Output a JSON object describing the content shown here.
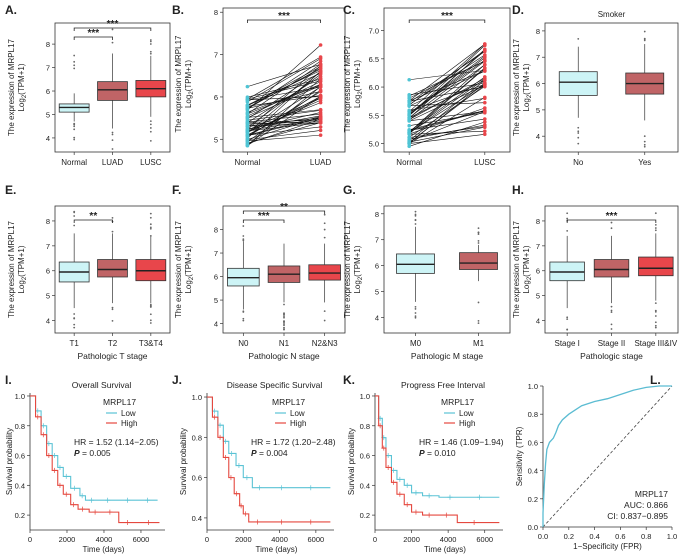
{
  "colors": {
    "normal_fill": "#cdf4f6",
    "luad_fill": "#c06466",
    "lusc_fill": "#e8464b",
    "paired_normal": "#4fc4d4",
    "paired_tumor": "#e8464b",
    "km_low": "#5bc3d5",
    "km_high": "#e5483f",
    "roc_line": "#5bbcd2"
  },
  "chart_data": [
    {
      "panel": "A.",
      "type": "box",
      "ylabel1": "The expression of MRPL17",
      "ylabel2_base": "Log",
      "ylabel2_sub": "2",
      "ylabel2_rest": "(TPM+1)",
      "ylim": [
        3.4,
        8.9
      ],
      "yticks": [
        "4",
        "5",
        "6",
        "7",
        "8"
      ],
      "categories": [
        "Normal",
        "LUAD",
        "LUSC"
      ],
      "boxes": [
        {
          "q1": 5.1,
          "median": 5.3,
          "q3": 5.45,
          "lo": 4.7,
          "hi": 5.9,
          "fill": "normal_fill"
        },
        {
          "q1": 5.6,
          "median": 6.05,
          "q3": 6.4,
          "lo": 4.4,
          "hi": 7.6,
          "fill": "luad_fill"
        },
        {
          "q1": 5.75,
          "median": 6.1,
          "q3": 6.45,
          "lo": 4.9,
          "hi": 7.5,
          "fill": "lusc_fill"
        }
      ],
      "comparisons": [
        {
          "from": 0,
          "to": 1,
          "level": 1,
          "label": "***"
        },
        {
          "from": 0,
          "to": 2,
          "level": 2,
          "label": "***"
        }
      ]
    },
    {
      "panel": "B.",
      "type": "paired",
      "ylabel1": "The expression of MRPL17",
      "ylabel2_base": "Log",
      "ylabel2_sub": "2",
      "ylabel2_rest": "(TPM+1)",
      "ylim": [
        4.7,
        8.1
      ],
      "yticks": [
        "5",
        "6",
        "7",
        "8"
      ],
      "categories": [
        "Normal",
        "LUAD"
      ],
      "normal_range": [
        4.85,
        6.35
      ],
      "tumor_range": [
        4.95,
        7.75
      ],
      "pairs": 58,
      "comparisons": [
        {
          "from": 0,
          "to": 1,
          "level": 1,
          "label": "***"
        }
      ]
    },
    {
      "panel": "C.",
      "type": "paired",
      "ylabel1": "The expression of MRPL17",
      "ylabel2_base": "Log",
      "ylabel2_sub": "2",
      "ylabel2_rest": "(TPM+1)",
      "ylim": [
        4.85,
        7.4
      ],
      "yticks": [
        "5.0",
        "5.5",
        "6.0",
        "6.5",
        "7.0"
      ],
      "categories": [
        "Normal",
        "LUSC"
      ],
      "normal_range": [
        4.95,
        6.15
      ],
      "tumor_range": [
        4.95,
        7.15
      ],
      "pairs": 50,
      "comparisons": [
        {
          "from": 0,
          "to": 1,
          "level": 1,
          "label": "***"
        }
      ]
    },
    {
      "panel": "D.",
      "type": "box",
      "title": "Smoker",
      "ylabel1": "The expression of MRPL17",
      "ylabel2_base": "Log",
      "ylabel2_sub": "2",
      "ylabel2_rest": "(TPM+1)",
      "ylim": [
        3.4,
        8.3
      ],
      "yticks": [
        "4",
        "5",
        "6",
        "7",
        "8"
      ],
      "categories": [
        "No",
        "Yes"
      ],
      "boxes": [
        {
          "q1": 5.55,
          "median": 6.05,
          "q3": 6.45,
          "lo": 4.7,
          "hi": 7.4,
          "fill": "normal_fill"
        },
        {
          "q1": 5.6,
          "median": 6.0,
          "q3": 6.4,
          "lo": 4.6,
          "hi": 7.5,
          "fill": "luad_fill"
        }
      ],
      "comparisons": []
    },
    {
      "panel": "E.",
      "type": "box",
      "ylabel1": "The expression of MRPL17",
      "ylabel2_base": "Log",
      "ylabel2_sub": "2",
      "ylabel2_rest": "(TPM+1)",
      "ylim": [
        3.5,
        8.6
      ],
      "yticks": [
        "4",
        "5",
        "6",
        "7",
        "8"
      ],
      "categories": [
        "T1",
        "T2",
        "T3&T4"
      ],
      "xlabel": "Pathologic T stage",
      "boxes": [
        {
          "q1": 5.55,
          "median": 5.95,
          "q3": 6.35,
          "lo": 4.5,
          "hi": 7.5,
          "fill": "normal_fill"
        },
        {
          "q1": 5.75,
          "median": 6.05,
          "q3": 6.45,
          "lo": 4.7,
          "hi": 7.5,
          "fill": "luad_fill"
        },
        {
          "q1": 5.6,
          "median": 6.0,
          "q3": 6.45,
          "lo": 4.7,
          "hi": 7.4,
          "fill": "lusc_fill"
        }
      ],
      "comparisons": [
        {
          "from": 0,
          "to": 1,
          "level": 1,
          "label": "**"
        }
      ]
    },
    {
      "panel": "F.",
      "type": "box",
      "ylabel1": "The expression of MRPL17",
      "ylabel2_base": "Log",
      "ylabel2_sub": "2",
      "ylabel2_rest": "(TPM+1)",
      "ylim": [
        3.6,
        9.0
      ],
      "yticks": [
        "4",
        "5",
        "6",
        "7",
        "8"
      ],
      "categories": [
        "N0",
        "N1",
        "N2&N3"
      ],
      "xlabel": "Pathologic N stage",
      "boxes": [
        {
          "q1": 5.6,
          "median": 5.95,
          "q3": 6.35,
          "lo": 4.6,
          "hi": 7.5,
          "fill": "normal_fill"
        },
        {
          "q1": 5.75,
          "median": 6.1,
          "q3": 6.45,
          "lo": 4.9,
          "hi": 7.4,
          "fill": "luad_fill"
        },
        {
          "q1": 5.85,
          "median": 6.15,
          "q3": 6.5,
          "lo": 4.9,
          "hi": 7.4,
          "fill": "lusc_fill"
        }
      ],
      "comparisons": [
        {
          "from": 0,
          "to": 1,
          "level": 1,
          "label": "***"
        },
        {
          "from": 0,
          "to": 2,
          "level": 2,
          "label": "**"
        }
      ]
    },
    {
      "panel": "G.",
      "type": "box",
      "ylabel1": "The expression of MRPL17",
      "ylabel2_base": "Log",
      "ylabel2_sub": "2",
      "ylabel2_rest": "(TPM+1)",
      "ylim": [
        3.4,
        8.3
      ],
      "yticks": [
        "4",
        "5",
        "6",
        "7",
        "8"
      ],
      "categories": [
        "M0",
        "M1"
      ],
      "xlabel": "Pathologic M stage",
      "boxes": [
        {
          "q1": 5.7,
          "median": 6.05,
          "q3": 6.45,
          "lo": 4.6,
          "hi": 7.5,
          "fill": "normal_fill"
        },
        {
          "q1": 5.85,
          "median": 6.1,
          "q3": 6.5,
          "lo": 5.4,
          "hi": 6.8,
          "fill": "luad_fill"
        }
      ],
      "comparisons": []
    },
    {
      "panel": "H.",
      "type": "box",
      "ylabel1": "The expression of MRPL17",
      "ylabel2_base": "Log",
      "ylabel2_sub": "2",
      "ylabel2_rest": "(TPM+1)",
      "ylim": [
        3.5,
        8.6
      ],
      "yticks": [
        "4",
        "5",
        "6",
        "7",
        "8"
      ],
      "categories": [
        "Stage I",
        "Stage II",
        "Stage III&IV"
      ],
      "xlabel": "Pathologic stage",
      "boxes": [
        {
          "q1": 5.6,
          "median": 5.95,
          "q3": 6.35,
          "lo": 4.5,
          "hi": 7.4,
          "fill": "normal_fill"
        },
        {
          "q1": 5.75,
          "median": 6.05,
          "q3": 6.45,
          "lo": 4.7,
          "hi": 7.4,
          "fill": "luad_fill"
        },
        {
          "q1": 5.8,
          "median": 6.1,
          "q3": 6.55,
          "lo": 4.8,
          "hi": 7.5,
          "fill": "lusc_fill"
        }
      ],
      "comparisons": [
        {
          "from": 0,
          "to": 2,
          "level": 1,
          "label": "***"
        }
      ]
    },
    {
      "panel": "I.",
      "type": "km",
      "title": "Overall Survival",
      "ylabel": "Survival probability",
      "xlabel": "Time (days)",
      "ylim": [
        0.1,
        1.02
      ],
      "yticks": [
        0.2,
        0.4,
        0.6,
        0.8,
        1.0
      ],
      "xlim": [
        0,
        7300
      ],
      "xticks": [
        0,
        2000,
        4000,
        6000
      ],
      "legend_title": "MRPL17",
      "legend": [
        "Low",
        "High"
      ],
      "hr": "HR = 1.52 (1.14−2.05)",
      "p_label": "P",
      "p_value": " = 0.005",
      "low": [
        [
          0,
          1.0
        ],
        [
          300,
          0.9
        ],
        [
          600,
          0.8
        ],
        [
          900,
          0.68
        ],
        [
          1200,
          0.6
        ],
        [
          1500,
          0.52
        ],
        [
          1800,
          0.46
        ],
        [
          2200,
          0.38
        ],
        [
          2700,
          0.33
        ],
        [
          3000,
          0.3
        ],
        [
          3800,
          0.3
        ],
        [
          4800,
          0.3
        ],
        [
          6000,
          0.3
        ],
        [
          6900,
          0.3
        ]
      ],
      "high": [
        [
          0,
          1.0
        ],
        [
          300,
          0.86
        ],
        [
          600,
          0.74
        ],
        [
          900,
          0.6
        ],
        [
          1200,
          0.5
        ],
        [
          1500,
          0.4
        ],
        [
          1800,
          0.34
        ],
        [
          2200,
          0.27
        ],
        [
          2600,
          0.24
        ],
        [
          3200,
          0.22
        ],
        [
          4000,
          0.22
        ],
        [
          4800,
          0.15
        ],
        [
          6000,
          0.15
        ],
        [
          7000,
          0.15
        ]
      ]
    },
    {
      "panel": "J.",
      "type": "km",
      "title": "Disease Specific Survival",
      "ylabel": "Survival probability",
      "xlabel": "Time (days)",
      "ylim": [
        0.34,
        1.02
      ],
      "yticks": [
        0.4,
        0.6,
        0.8,
        1.0
      ],
      "xlim": [
        0,
        7000
      ],
      "xticks": [
        0,
        2000,
        4000,
        6000
      ],
      "legend_title": "MRPL17",
      "legend": [
        "Low",
        "High"
      ],
      "hr": "HR = 1.72 (1.20−2.48)",
      "p_label": "P",
      "p_value": " = 0.004",
      "low": [
        [
          0,
          1.0
        ],
        [
          300,
          0.93
        ],
        [
          600,
          0.86
        ],
        [
          900,
          0.78
        ],
        [
          1200,
          0.72
        ],
        [
          1600,
          0.66
        ],
        [
          2000,
          0.6
        ],
        [
          2500,
          0.55
        ],
        [
          3500,
          0.55
        ],
        [
          5000,
          0.55
        ],
        [
          6800,
          0.55
        ]
      ],
      "high": [
        [
          0,
          1.0
        ],
        [
          300,
          0.9
        ],
        [
          600,
          0.8
        ],
        [
          900,
          0.7
        ],
        [
          1200,
          0.6
        ],
        [
          1500,
          0.52
        ],
        [
          1800,
          0.46
        ],
        [
          2000,
          0.42
        ],
        [
          2300,
          0.38
        ],
        [
          3500,
          0.38
        ],
        [
          5000,
          0.38
        ],
        [
          6800,
          0.38
        ]
      ]
    },
    {
      "panel": "K.",
      "type": "km",
      "title": "Progress Free Interval",
      "ylabel": "Survival probability",
      "xlabel": "Time (days)",
      "ylim": [
        0.1,
        1.02
      ],
      "yticks": [
        0.2,
        0.4,
        0.6,
        0.8,
        1.0
      ],
      "xlim": [
        0,
        7000
      ],
      "xticks": [
        0,
        2000,
        4000,
        6000
      ],
      "legend_title": "MRPL17",
      "legend": [
        "Low",
        "High"
      ],
      "hr": "HR = 1.46 (1.09−1.94)",
      "p_label": "P",
      "p_value": " = 0.010",
      "low": [
        [
          0,
          1.0
        ],
        [
          200,
          0.85
        ],
        [
          400,
          0.72
        ],
        [
          600,
          0.6
        ],
        [
          900,
          0.5
        ],
        [
          1200,
          0.44
        ],
        [
          1600,
          0.4
        ],
        [
          2000,
          0.35
        ],
        [
          2600,
          0.33
        ],
        [
          3500,
          0.32
        ],
        [
          5000,
          0.32
        ],
        [
          6800,
          0.32
        ]
      ],
      "high": [
        [
          0,
          1.0
        ],
        [
          200,
          0.8
        ],
        [
          400,
          0.65
        ],
        [
          600,
          0.52
        ],
        [
          900,
          0.42
        ],
        [
          1200,
          0.34
        ],
        [
          1600,
          0.27
        ],
        [
          2000,
          0.22
        ],
        [
          2600,
          0.2
        ],
        [
          3500,
          0.2
        ],
        [
          4500,
          0.15
        ],
        [
          6800,
          0.15
        ]
      ]
    },
    {
      "panel": "L.",
      "type": "roc",
      "xlabel": "1−Specificity (FPR)",
      "ylabel": "Sensitivity (TPR)",
      "xlim": [
        0,
        1
      ],
      "ylim": [
        0,
        1
      ],
      "ticks": [
        "0.0",
        "0.2",
        "0.4",
        "0.6",
        "0.8",
        "1.0"
      ],
      "gene": "MRPL17",
      "auc": "AUC: 0.866",
      "ci": "CI: 0.837−0.895",
      "points": [
        [
          0,
          0
        ],
        [
          0.0,
          0.1
        ],
        [
          0.01,
          0.3
        ],
        [
          0.02,
          0.45
        ],
        [
          0.03,
          0.55
        ],
        [
          0.05,
          0.6
        ],
        [
          0.08,
          0.63
        ],
        [
          0.1,
          0.67
        ],
        [
          0.12,
          0.72
        ],
        [
          0.15,
          0.76
        ],
        [
          0.2,
          0.8
        ],
        [
          0.25,
          0.83
        ],
        [
          0.3,
          0.86
        ],
        [
          0.4,
          0.89
        ],
        [
          0.5,
          0.91
        ],
        [
          0.6,
          0.94
        ],
        [
          0.7,
          0.97
        ],
        [
          0.8,
          0.99
        ],
        [
          0.9,
          1.0
        ],
        [
          1.0,
          1.0
        ]
      ]
    }
  ]
}
